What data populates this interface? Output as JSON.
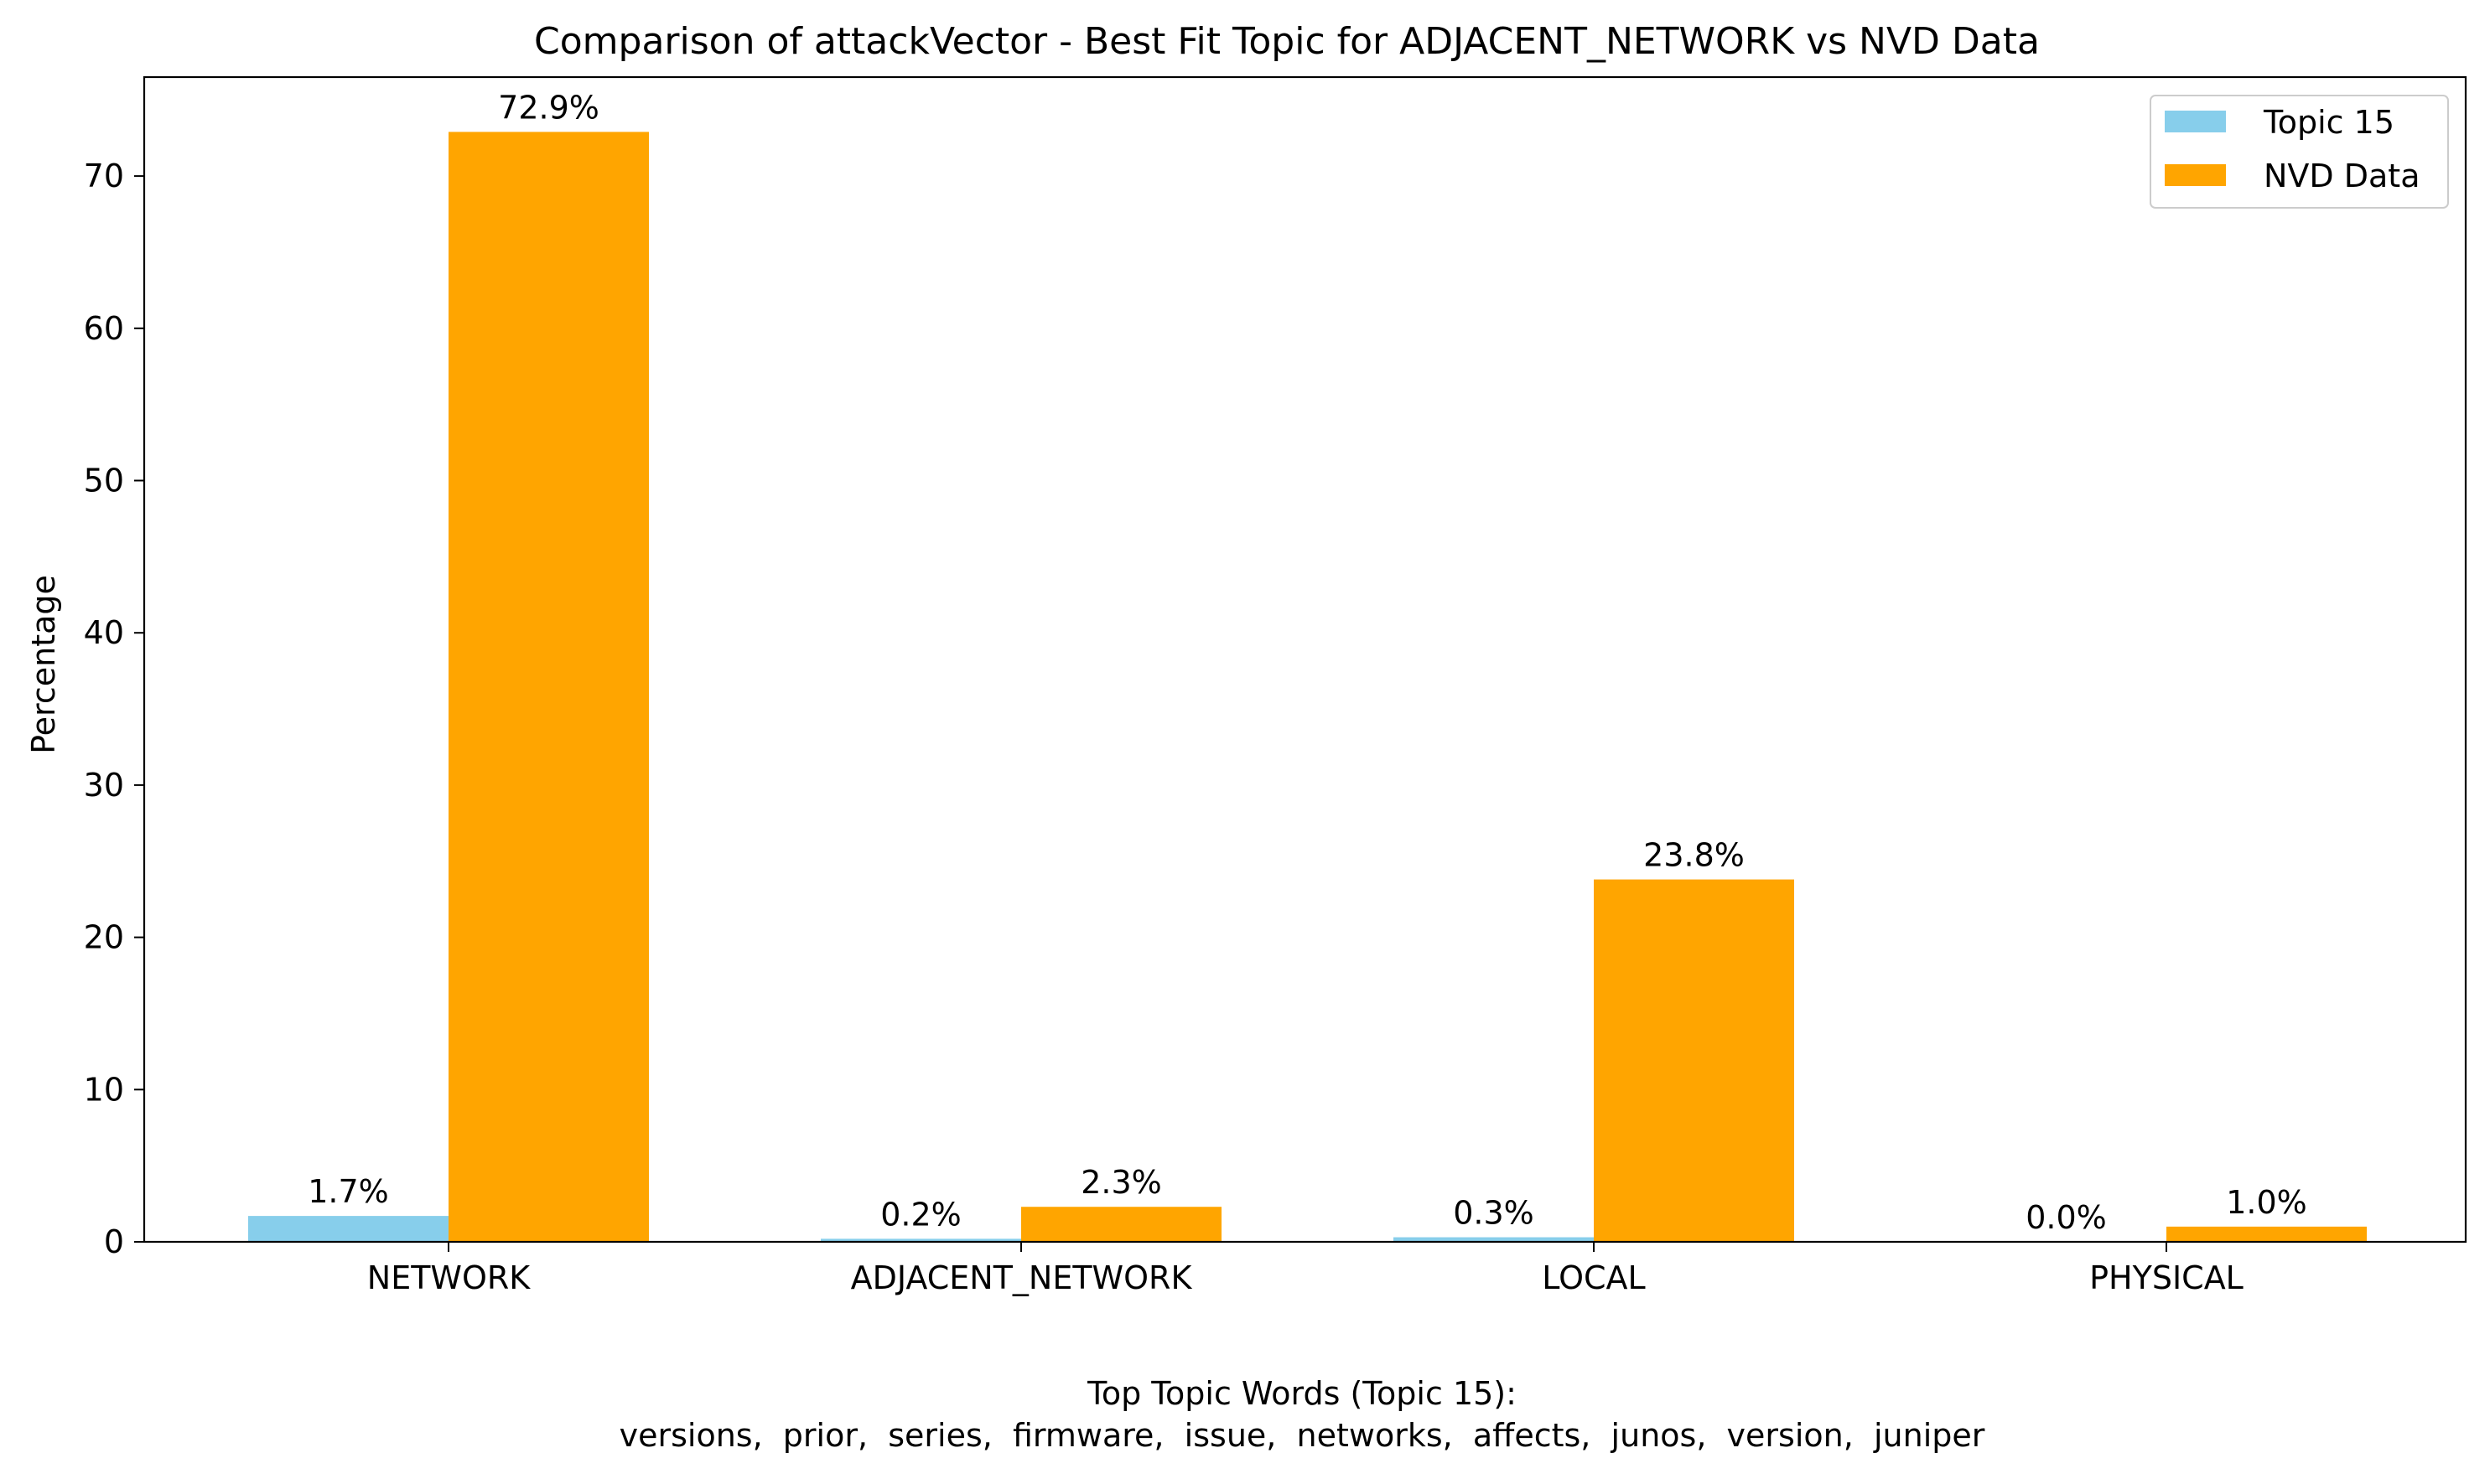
{
  "chart_data": {
    "type": "bar",
    "title": "Comparison of attackVector - Best Fit Topic for ADJACENT_NETWORK vs NVD Data",
    "xlabel": "",
    "ylabel": "Percentage",
    "categories": [
      "NETWORK",
      "ADJACENT_NETWORK",
      "LOCAL",
      "PHYSICAL"
    ],
    "series": [
      {
        "name": "Topic 15",
        "color": "#87CEEB",
        "values": [
          1.7,
          0.2,
          0.3,
          0.0
        ],
        "labels": [
          "1.7%",
          "0.2%",
          "0.3%",
          "0.0%"
        ]
      },
      {
        "name": "NVD Data",
        "color": "#FFA500",
        "values": [
          72.9,
          2.3,
          23.8,
          1.0
        ],
        "labels": [
          "72.9%",
          "2.3%",
          "23.8%",
          "1.0%"
        ]
      }
    ],
    "ylim": [
      0,
      76.5
    ],
    "yticks": [
      0,
      10,
      20,
      30,
      40,
      50,
      60,
      70
    ],
    "ytick_labels": [
      "0",
      "10",
      "20",
      "30",
      "40",
      "50",
      "60",
      "70"
    ],
    "grid": false,
    "legend_position": "top-right",
    "footer": {
      "heading": "Top Topic Words (Topic 15):",
      "words": "versions,  prior,  series,  firmware,  issue,  networks,  affects,  junos,  version,  juniper"
    }
  }
}
